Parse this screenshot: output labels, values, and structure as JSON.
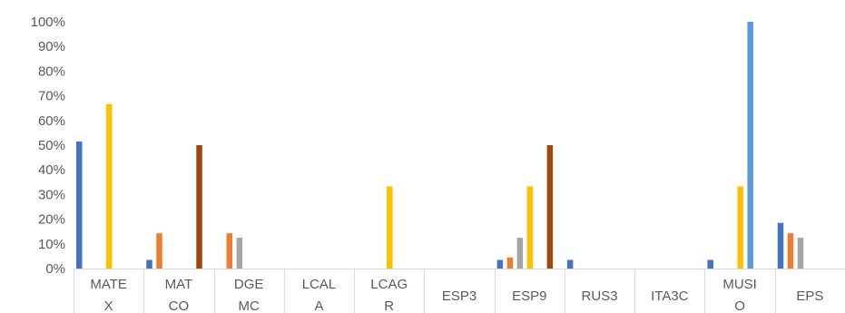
{
  "chart_data": {
    "type": "bar",
    "categories": [
      [
        "MATE",
        "X"
      ],
      [
        "MAT",
        "CO"
      ],
      [
        "DGE",
        "MC"
      ],
      [
        "LCAL",
        "A"
      ],
      [
        "LCAG",
        "R"
      ],
      [
        "ESP3"
      ],
      [
        "ESP9"
      ],
      [
        "RUS3"
      ],
      [
        "ITA3C"
      ],
      [
        "MUSI",
        "O"
      ],
      [
        "EPS"
      ]
    ],
    "series": [
      {
        "color": "#4472C4",
        "values": [
          51.5,
          3.5,
          0,
          0,
          0,
          0,
          3.5,
          3.5,
          0,
          3.5,
          18.5
        ]
      },
      {
        "color": "#ED7D31",
        "values": [
          0,
          14.3,
          14.3,
          0,
          0,
          0,
          4.5,
          0,
          0,
          0,
          14.3
        ]
      },
      {
        "color": "#A5A5A5",
        "values": [
          0,
          0,
          12.5,
          0,
          0,
          0,
          12.5,
          0,
          0,
          0,
          12.5
        ]
      },
      {
        "color": "#FFC000",
        "values": [
          66.7,
          0,
          0,
          0,
          33.3,
          0,
          33.3,
          0,
          0,
          33.3,
          0
        ]
      },
      {
        "color": "#5B9BD5",
        "values": [
          0,
          0,
          0,
          0,
          0,
          0,
          0,
          0,
          0,
          100,
          0
        ]
      },
      {
        "color": "#9E480E",
        "values": [
          0,
          50,
          0,
          0,
          0,
          0,
          50,
          0,
          0,
          0,
          0
        ]
      }
    ],
    "y_ticks": [
      "0%",
      "10%",
      "20%",
      "30%",
      "40%",
      "50%",
      "60%",
      "70%",
      "80%",
      "90%",
      "100%"
    ],
    "ylim": [
      0,
      100
    ],
    "grid": false,
    "legend": "none"
  }
}
